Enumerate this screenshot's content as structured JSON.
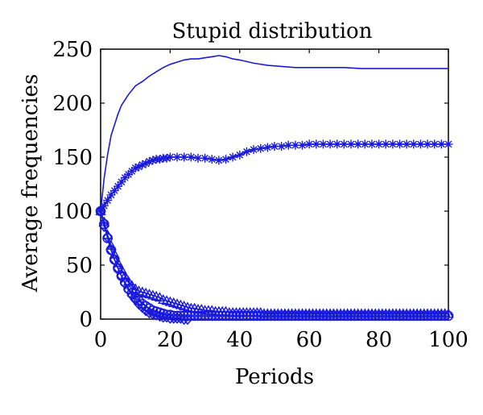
{
  "chart_data": {
    "type": "line",
    "title": "Stupid distribution",
    "xlabel": "Periods",
    "ylabel": "Average frequencies",
    "xlim": [
      0,
      100
    ],
    "ylim": [
      0,
      250
    ],
    "xticks": [
      0,
      20,
      40,
      60,
      80,
      100
    ],
    "yticks": [
      0,
      50,
      100,
      150,
      200,
      250
    ],
    "grid": false,
    "line_color": "#1a1adb",
    "series": [
      {
        "marker": "none",
        "x": [
          0,
          1,
          2,
          3,
          4,
          5,
          6,
          8,
          10,
          12,
          14,
          16,
          18,
          20,
          22,
          24,
          26,
          28,
          30,
          32,
          34,
          36,
          38,
          40,
          44,
          48,
          52,
          56,
          60,
          65,
          70,
          75,
          80,
          85,
          90,
          95,
          100
        ],
        "y": [
          100,
          130,
          152,
          170,
          180,
          190,
          198,
          208,
          216,
          220,
          225,
          229,
          233,
          236,
          238,
          240,
          241,
          241,
          242,
          243,
          244,
          243,
          241,
          240,
          237,
          235,
          234,
          233,
          233,
          233,
          233,
          232,
          232,
          232,
          232,
          232,
          232
        ]
      },
      {
        "marker": "asterisk",
        "x": [
          0,
          1,
          2,
          3,
          4,
          5,
          6,
          7,
          8,
          9,
          10,
          11,
          12,
          13,
          14,
          15,
          16,
          17,
          18,
          19,
          20,
          22,
          24,
          26,
          28,
          30,
          32,
          34,
          36,
          38,
          40,
          42,
          44,
          46,
          48,
          50,
          52,
          54,
          56,
          58,
          60,
          62,
          64,
          66,
          68,
          70,
          72,
          74,
          76,
          78,
          80,
          82,
          84,
          86,
          88,
          90,
          92,
          94,
          96,
          98,
          100
        ],
        "y": [
          100,
          105,
          110,
          115,
          119,
          123,
          127,
          131,
          134,
          137,
          140,
          141,
          143,
          144,
          146,
          147,
          148,
          148,
          149,
          149,
          150,
          150,
          150,
          150,
          149,
          149,
          148,
          147,
          148,
          150,
          152,
          155,
          157,
          158,
          159,
          160,
          160,
          161,
          161,
          161,
          162,
          162,
          162,
          162,
          162,
          162,
          162,
          162,
          162,
          162,
          162,
          162,
          162,
          162,
          162,
          162,
          162,
          162,
          162,
          162,
          162
        ]
      },
      {
        "marker": "triangle",
        "x": [
          0,
          1,
          2,
          3,
          4,
          5,
          6,
          7,
          8,
          9,
          10,
          11,
          12,
          13,
          14,
          15,
          16,
          17,
          18,
          19,
          20,
          21,
          22,
          23,
          24,
          25,
          26,
          27,
          28,
          29,
          30,
          31,
          32,
          33,
          34,
          35,
          36,
          37,
          38,
          39,
          40,
          41,
          42,
          43,
          44,
          45,
          46,
          47,
          48,
          49,
          50,
          51,
          52,
          53,
          54,
          55,
          56,
          57,
          58,
          59,
          60,
          61,
          62,
          63,
          64,
          65,
          66,
          67,
          68,
          69,
          70,
          71,
          72,
          73,
          74,
          75,
          76,
          77,
          78,
          79,
          80,
          81,
          82,
          83,
          84,
          85,
          86,
          87,
          88,
          89,
          90,
          91,
          92,
          93,
          94,
          95,
          96,
          97,
          98,
          99,
          100
        ],
        "y": [
          100,
          90,
          78,
          68,
          60,
          52,
          46,
          40,
          35,
          31,
          28,
          26,
          25,
          24,
          23,
          22,
          21,
          20,
          18,
          17,
          16,
          15,
          14,
          13,
          12,
          11,
          10,
          10,
          9,
          9,
          8,
          8,
          8,
          7,
          7,
          7,
          7,
          6,
          6,
          6,
          6,
          6,
          6,
          6,
          6,
          6,
          6,
          5,
          5,
          5,
          5,
          5,
          5,
          5,
          5,
          5,
          5,
          5,
          5,
          5,
          5,
          5,
          5,
          5,
          5,
          5,
          5,
          5,
          5,
          5,
          5,
          5,
          5,
          5,
          5,
          5,
          5,
          5,
          5,
          5,
          5,
          5,
          5,
          5,
          5,
          5,
          5,
          5,
          5,
          5,
          5,
          5,
          5,
          5,
          5,
          5,
          5,
          5,
          5,
          5,
          5
        ]
      },
      {
        "marker": "circle",
        "x": [
          0,
          1,
          2,
          3,
          4,
          5,
          6,
          7,
          8,
          9,
          10,
          11,
          12,
          13,
          14,
          15,
          16,
          17,
          18,
          19,
          20,
          21,
          22,
          23,
          24,
          25,
          26,
          27,
          28,
          29,
          30,
          31,
          32,
          33,
          34,
          35,
          36,
          37,
          38,
          39,
          40,
          41,
          42,
          43,
          44,
          45,
          46,
          47,
          48,
          49,
          50,
          51,
          52,
          53,
          54,
          55,
          56,
          57,
          58,
          59,
          60,
          61,
          62,
          63,
          64,
          65,
          66,
          67,
          68,
          69,
          70,
          71,
          72,
          73,
          74,
          75,
          76,
          77,
          78,
          79,
          80,
          81,
          82,
          83,
          84,
          85,
          86,
          87,
          88,
          89,
          90,
          91,
          92,
          93,
          94,
          95,
          96,
          97,
          98,
          99,
          100
        ],
        "y": [
          100,
          88,
          75,
          64,
          55,
          47,
          40,
          34,
          28,
          24,
          20,
          17,
          14,
          12,
          10,
          8,
          7,
          6,
          5,
          4,
          4,
          3,
          3,
          3,
          3,
          3,
          3,
          3,
          3,
          3,
          3,
          3,
          3,
          3,
          3,
          3,
          3,
          3,
          3,
          3,
          3,
          3,
          3,
          3,
          3,
          3,
          3,
          3,
          3,
          3,
          3,
          3,
          3,
          3,
          3,
          3,
          3,
          3,
          3,
          3,
          3,
          3,
          3,
          3,
          3,
          3,
          3,
          3,
          3,
          3,
          3,
          3,
          3,
          3,
          3,
          3,
          3,
          3,
          3,
          3,
          3,
          3,
          3,
          3,
          3,
          3,
          3,
          3,
          3,
          3,
          3,
          3,
          3,
          3,
          3,
          3,
          3,
          3,
          3,
          3,
          3
        ]
      },
      {
        "marker": "diamond",
        "x": [
          0,
          1,
          2,
          3,
          4,
          5,
          6,
          7,
          8,
          9,
          10,
          11,
          12,
          13,
          14,
          15,
          16,
          17,
          18,
          19,
          20,
          21,
          22,
          23,
          24,
          25
        ],
        "y": [
          100,
          86,
          76,
          64,
          55,
          47,
          40,
          33,
          27,
          22,
          18,
          14,
          11,
          8,
          6,
          5,
          4,
          3,
          2,
          2,
          1,
          1,
          1,
          1,
          0,
          0
        ]
      }
    ]
  }
}
